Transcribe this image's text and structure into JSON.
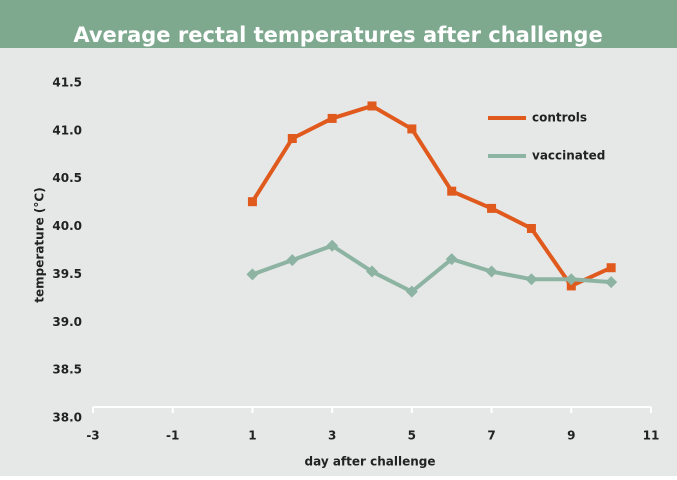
{
  "chart_data": {
    "type": "line",
    "title": "Average rectal temperatures after challenge",
    "x_label": "day after challenge",
    "y_label": "temperature (°C)",
    "x": [
      1,
      2,
      3,
      4,
      5,
      6,
      7,
      8,
      9,
      10
    ],
    "series": [
      {
        "name": "controls",
        "color": "#e05a1e",
        "marker": "square",
        "values": [
          40.26,
          40.92,
          41.13,
          41.26,
          41.02,
          40.37,
          40.19,
          39.98,
          39.38,
          39.57
        ]
      },
      {
        "name": "vaccinated",
        "color": "#8db3a2",
        "marker": "diamond",
        "values": [
          39.5,
          39.65,
          39.8,
          39.53,
          39.32,
          39.66,
          39.53,
          39.45,
          39.45,
          39.42
        ]
      }
    ],
    "xlim": [
      -3,
      11
    ],
    "xticks": [
      -3,
      -1,
      1,
      3,
      5,
      7,
      9,
      11
    ],
    "ylim": [
      38,
      41.5
    ],
    "yticks": [
      {
        "value": 38,
        "label": "38.0"
      },
      38.5,
      {
        "value": 39,
        "label": "39.0"
      },
      39.5,
      {
        "value": 40,
        "label": "40.0"
      },
      40.5,
      {
        "value": 41,
        "label": "41.0"
      },
      41.5
    ],
    "grid": false,
    "legend": "top right"
  }
}
